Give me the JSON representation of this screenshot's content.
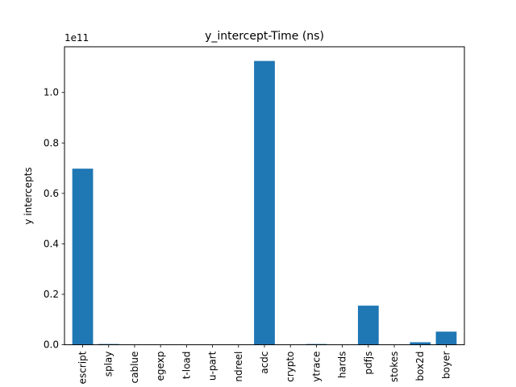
{
  "chart_data": {
    "type": "bar",
    "title": "y_intercept-Time  (ns)",
    "xlabel": "",
    "ylabel": "y intercepts",
    "offset_text": "1e11",
    "categories": [
      "escript",
      "splay",
      "cablue",
      "egexp",
      "t-load",
      "u-part",
      "ndreel",
      "acdc",
      "crypto",
      "ytrace",
      "hards",
      "pdfjs",
      "stokes",
      "box2d",
      "boyer"
    ],
    "values": [
      69800000000,
      300000000,
      0,
      0,
      0,
      0,
      0,
      112500000000,
      0,
      300000000,
      0,
      15500000000,
      0,
      1000000000,
      5200000000
    ],
    "ylim": [
      0,
      118125000000
    ],
    "yticks": [
      0.0,
      0.2,
      0.4,
      0.6,
      0.8,
      1.0
    ],
    "ytick_scale": 100000000000,
    "ytick_labels": [
      "0.0",
      "0.2",
      "0.4",
      "0.6",
      "0.8",
      "1.0"
    ],
    "bar_color": "#1f77b4",
    "grid": false,
    "legend": false
  }
}
